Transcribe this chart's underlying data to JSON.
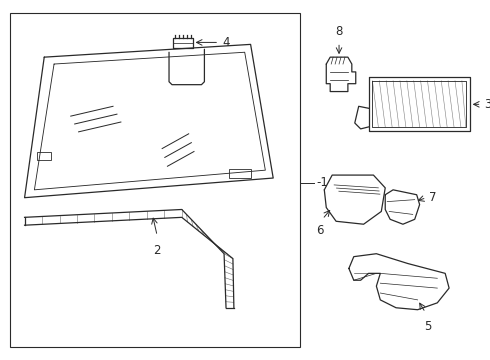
{
  "bg_color": "#ffffff",
  "line_color": "#2a2a2a",
  "fig_width": 4.9,
  "fig_height": 3.6,
  "dpi": 100,
  "font_size": 8.5
}
